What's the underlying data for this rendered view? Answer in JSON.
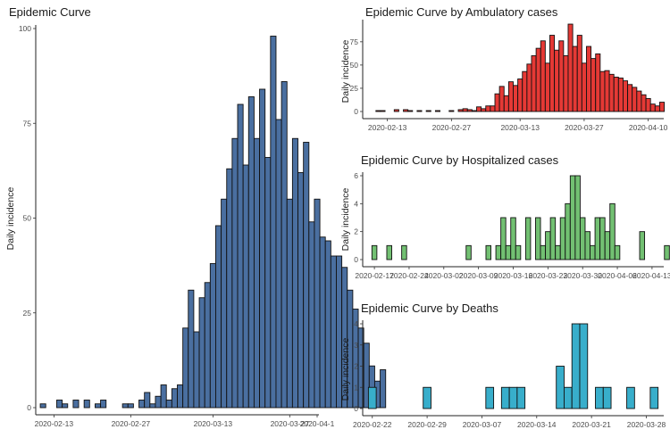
{
  "chart_data": [
    {
      "id": "main",
      "type": "bar",
      "title": "Epidemic Curve",
      "xlabel": "",
      "ylabel": "Daily incidence",
      "fill": "#4a6fa0",
      "start_date": "2020-02-11",
      "xlim": [
        "2020-02-10",
        "2020-04-01"
      ],
      "ylim": [
        0,
        100
      ],
      "x_ticks": [
        "2020-02-13",
        "2020-02-27",
        "2020-03-13",
        "2020-03-27",
        "2020-04-1"
      ],
      "y_ticks": [
        0,
        25,
        50,
        75,
        100
      ],
      "values": [
        1,
        0,
        0,
        2,
        1,
        0,
        2,
        0,
        2,
        0,
        1,
        2,
        0,
        0,
        0,
        1,
        1,
        0,
        2,
        4,
        1,
        3,
        6,
        2,
        5,
        6,
        21,
        31,
        20,
        29,
        33,
        38,
        48,
        55,
        63,
        71,
        80,
        64,
        82,
        71,
        84,
        66,
        98,
        76,
        86,
        55,
        71,
        62,
        70,
        49,
        55,
        45,
        44,
        40,
        40,
        37,
        31,
        26,
        21,
        17,
        11,
        7,
        10
      ]
    },
    {
      "id": "ambulatory",
      "type": "bar",
      "title": "Epidemic Curve by Ambulatory cases",
      "xlabel": "",
      "ylabel": "Daily incidence",
      "fill": "#e53935",
      "start_date": "2020-02-11",
      "xlim": [
        "2020-02-08",
        "2020-04-13"
      ],
      "ylim": [
        0,
        95
      ],
      "x_ticks": [
        "2020-02-13",
        "2020-02-27",
        "2020-03-13",
        "2020-03-27",
        "2020-04-10"
      ],
      "y_ticks": [
        0,
        25,
        50,
        75
      ],
      "values": [
        1,
        1,
        0,
        0,
        2,
        0,
        2,
        1,
        0,
        1,
        0,
        1,
        0,
        1,
        0,
        0,
        1,
        0,
        2,
        3,
        2,
        1,
        5,
        3,
        6,
        6,
        19,
        27,
        17,
        32,
        28,
        35,
        43,
        51,
        60,
        68,
        76,
        52,
        82,
        66,
        76,
        60,
        94,
        70,
        82,
        52,
        70,
        57,
        62,
        43,
        44,
        40,
        37,
        36,
        33,
        29,
        26,
        22,
        18,
        14,
        8,
        6,
        10
      ]
    },
    {
      "id": "hospitalized",
      "type": "bar",
      "title": "Epidemic Curve by Hospitalized cases",
      "xlabel": "",
      "ylabel": "Daily incidence",
      "fill": "#72c072",
      "start_date": "2020-02-17",
      "xlim": [
        "2020-02-15",
        "2020-04-15"
      ],
      "ylim": [
        0,
        6
      ],
      "x_ticks": [
        "2020-02-17",
        "2020-02-24",
        "2020-03-02",
        "2020-03-09",
        "2020-03-16",
        "2020-03-23",
        "2020-03-30",
        "2020-04-06",
        "2020-04-13"
      ],
      "x_tick_labels": [
        "2020-02-17",
        "2020-02-24",
        "2020-03-02",
        "2020-03-09",
        "2020-03-16",
        "2020-03-23",
        "2020-03-30",
        "2020-04-06",
        "2020-04-13"
      ],
      "y_ticks": [
        0,
        2,
        4,
        6
      ],
      "values": [
        1,
        0,
        0,
        1,
        0,
        0,
        1,
        0,
        0,
        0,
        0,
        0,
        0,
        0,
        0,
        0,
        0,
        0,
        0,
        1,
        0,
        0,
        0,
        1,
        0,
        1,
        3,
        1,
        3,
        1,
        0,
        3,
        0,
        3,
        1,
        2,
        3,
        1,
        3,
        4,
        6,
        6,
        3,
        2,
        1,
        3,
        3,
        2,
        4,
        1,
        0,
        0,
        0,
        0,
        2,
        0,
        0,
        0,
        0,
        1,
        0,
        1,
        1,
        1,
        0,
        0,
        0,
        0,
        1
      ]
    },
    {
      "id": "deaths",
      "type": "bar",
      "title": "Epidemic Curve by Deaths",
      "xlabel": "",
      "ylabel": "Daily incidence",
      "fill": "#38aecb",
      "start_date": "2020-02-22",
      "xlim": [
        "2020-02-21",
        "2020-03-30"
      ],
      "ylim": [
        0,
        4
      ],
      "x_ticks": [
        "2020-02-22",
        "2020-02-29",
        "2020-03-07",
        "2020-03-14",
        "2020-03-21",
        "2020-03-28"
      ],
      "y_ticks": [
        0,
        1,
        2,
        3,
        4
      ],
      "values": [
        1,
        0,
        0,
        0,
        0,
        0,
        0,
        1,
        0,
        0,
        0,
        0,
        0,
        0,
        0,
        1,
        0,
        1,
        1,
        1,
        0,
        0,
        0,
        0,
        2,
        1,
        4,
        4,
        0,
        1,
        1,
        0,
        0,
        1,
        0,
        0,
        1
      ]
    }
  ]
}
